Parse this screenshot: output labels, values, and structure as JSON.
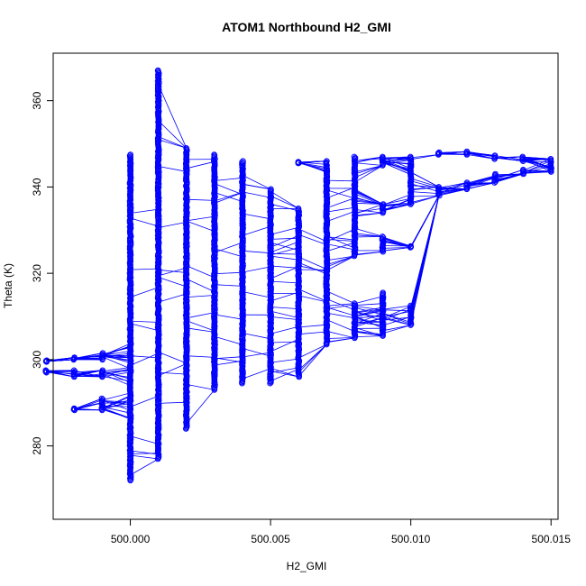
{
  "chart_data": {
    "type": "scatter",
    "title": "ATOM1 Northbound H2_GMI",
    "xlabel": "H2_GMI",
    "ylabel": "Theta (K)",
    "xlim": [
      499.99725,
      500.01525
    ],
    "ylim": [
      263,
      371
    ],
    "x_ticks": [
      500.0,
      500.005,
      500.01,
      500.015
    ],
    "x_tick_labels": [
      "500.000",
      "500.005",
      "500.010",
      "500.015"
    ],
    "y_ticks": [
      280,
      300,
      320,
      340,
      360
    ],
    "y_tick_labels": [
      "280",
      "300",
      "320",
      "340",
      "360"
    ],
    "grid": false,
    "legend": "none",
    "color": "#0000ff",
    "marker": "open-circle",
    "columns": [
      {
        "x": 499.997,
        "ranges": [
          [
            297,
            297.5
          ],
          [
            299.5,
            299.8
          ]
        ]
      },
      {
        "x": 499.998,
        "ranges": [
          [
            288.3,
            288.7
          ],
          [
            296,
            297.5
          ],
          [
            300,
            300.5
          ]
        ]
      },
      {
        "x": 499.999,
        "ranges": [
          [
            288.3,
            291
          ],
          [
            296,
            297.5
          ],
          [
            300,
            301.5
          ]
        ]
      },
      {
        "x": 500.0,
        "ranges": [
          [
            272,
            347.5
          ]
        ]
      },
      {
        "x": 500.001,
        "ranges": [
          [
            277,
            367
          ]
        ]
      },
      {
        "x": 500.002,
        "ranges": [
          [
            284,
            349
          ]
        ]
      },
      {
        "x": 500.003,
        "ranges": [
          [
            293,
            347.5
          ]
        ]
      },
      {
        "x": 500.004,
        "ranges": [
          [
            294.5,
            346
          ]
        ]
      },
      {
        "x": 500.005,
        "ranges": [
          [
            294.5,
            339.5
          ]
        ]
      },
      {
        "x": 500.006,
        "ranges": [
          [
            296,
            335
          ],
          [
            345.5,
            345.8
          ]
        ]
      },
      {
        "x": 500.007,
        "ranges": [
          [
            303.5,
            346
          ]
        ]
      },
      {
        "x": 500.008,
        "ranges": [
          [
            305,
            313
          ],
          [
            324,
            347
          ]
        ]
      },
      {
        "x": 500.009,
        "ranges": [
          [
            305.5,
            315.5
          ],
          [
            325,
            328.5
          ],
          [
            334,
            336
          ],
          [
            345,
            347
          ]
        ]
      },
      {
        "x": 500.01,
        "ranges": [
          [
            308,
            312.5
          ],
          [
            326,
            326.3
          ],
          [
            336,
            347
          ]
        ]
      },
      {
        "x": 500.011,
        "ranges": [
          [
            338,
            340
          ],
          [
            347.5,
            348
          ]
        ]
      },
      {
        "x": 500.012,
        "ranges": [
          [
            339.5,
            341
          ],
          [
            347.5,
            348.2
          ]
        ]
      },
      {
        "x": 500.013,
        "ranges": [
          [
            341,
            343
          ],
          [
            346.5,
            347.3
          ]
        ]
      },
      {
        "x": 500.014,
        "ranges": [
          [
            343,
            344
          ],
          [
            346,
            347
          ]
        ]
      },
      {
        "x": 500.015,
        "ranges": [
          [
            343.5,
            346.5
          ]
        ]
      }
    ]
  }
}
